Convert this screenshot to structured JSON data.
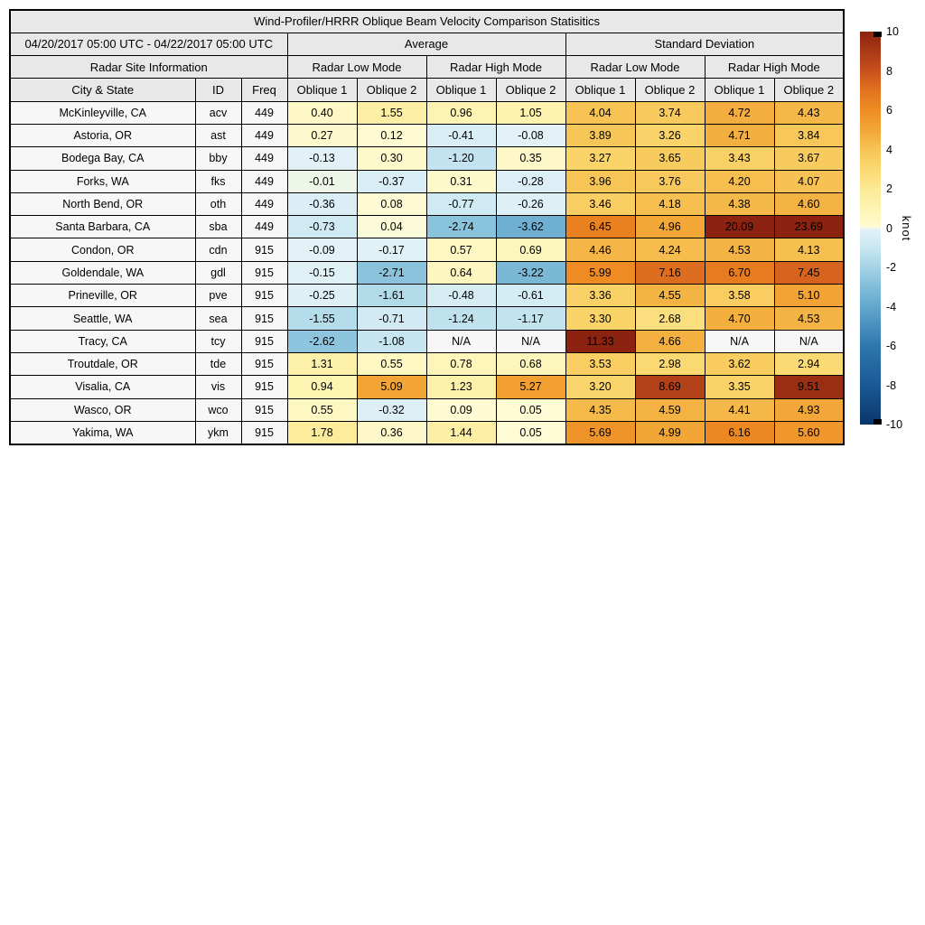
{
  "chart_data": {
    "type": "heatmap",
    "title": "Wind-Profiler/HRRR Oblique Beam Velocity Comparison Statisitics",
    "date_range": "04/20/2017 05:00 UTC - 04/22/2017 05:00 UTC",
    "group_headers": {
      "average": "Average",
      "std_dev": "Standard Deviation"
    },
    "site_info_header": "Radar Site Information",
    "mode_headers": [
      "Radar Low Mode",
      "Radar High Mode",
      "Radar Low Mode",
      "Radar High Mode"
    ],
    "col_headers": [
      "City & State",
      "ID",
      "Freq",
      "Oblique 1",
      "Oblique 2",
      "Oblique 1",
      "Oblique 2",
      "Oblique 1",
      "Oblique 2",
      "Oblique 1",
      "Oblique 2"
    ],
    "rows": [
      {
        "city": "McKinleyville, CA",
        "id": "acv",
        "freq": "449",
        "values": [
          "0.40",
          "1.55",
          "0.96",
          "1.05",
          "4.04",
          "3.74",
          "4.72",
          "4.43"
        ]
      },
      {
        "city": "Astoria, OR",
        "id": "ast",
        "freq": "449",
        "values": [
          "0.27",
          "0.12",
          "-0.41",
          "-0.08",
          "3.89",
          "3.26",
          "4.71",
          "3.84"
        ]
      },
      {
        "city": "Bodega Bay, CA",
        "id": "bby",
        "freq": "449",
        "values": [
          "-0.13",
          "0.30",
          "-1.20",
          "0.35",
          "3.27",
          "3.65",
          "3.43",
          "3.67"
        ]
      },
      {
        "city": "Forks, WA",
        "id": "fks",
        "freq": "449",
        "values": [
          "-0.01",
          "-0.37",
          "0.31",
          "-0.28",
          "3.96",
          "3.76",
          "4.20",
          "4.07"
        ]
      },
      {
        "city": "North Bend, OR",
        "id": "oth",
        "freq": "449",
        "values": [
          "-0.36",
          "0.08",
          "-0.77",
          "-0.26",
          "3.46",
          "4.18",
          "4.38",
          "4.60"
        ]
      },
      {
        "city": "Santa Barbara, CA",
        "id": "sba",
        "freq": "449",
        "values": [
          "-0.73",
          "0.04",
          "-2.74",
          "-3.62",
          "6.45",
          "4.96",
          "20.09",
          "23.69"
        ]
      },
      {
        "city": "Condon, OR",
        "id": "cdn",
        "freq": "915",
        "values": [
          "-0.09",
          "-0.17",
          "0.57",
          "0.69",
          "4.46",
          "4.24",
          "4.53",
          "4.13"
        ]
      },
      {
        "city": "Goldendale, WA",
        "id": "gdl",
        "freq": "915",
        "values": [
          "-0.15",
          "-2.71",
          "0.64",
          "-3.22",
          "5.99",
          "7.16",
          "6.70",
          "7.45"
        ]
      },
      {
        "city": "Prineville, OR",
        "id": "pve",
        "freq": "915",
        "values": [
          "-0.25",
          "-1.61",
          "-0.48",
          "-0.61",
          "3.36",
          "4.55",
          "3.58",
          "5.10"
        ]
      },
      {
        "city": "Seattle, WA",
        "id": "sea",
        "freq": "915",
        "values": [
          "-1.55",
          "-0.71",
          "-1.24",
          "-1.17",
          "3.30",
          "2.68",
          "4.70",
          "4.53"
        ]
      },
      {
        "city": "Tracy, CA",
        "id": "tcy",
        "freq": "915",
        "values": [
          "-2.62",
          "-1.08",
          "N/A",
          "N/A",
          "11.33",
          "4.66",
          "N/A",
          "N/A"
        ]
      },
      {
        "city": "Troutdale, OR",
        "id": "tde",
        "freq": "915",
        "values": [
          "1.31",
          "0.55",
          "0.78",
          "0.68",
          "3.53",
          "2.98",
          "3.62",
          "2.94"
        ]
      },
      {
        "city": "Visalia, CA",
        "id": "vis",
        "freq": "915",
        "values": [
          "0.94",
          "5.09",
          "1.23",
          "5.27",
          "3.20",
          "8.69",
          "3.35",
          "9.51"
        ]
      },
      {
        "city": "Wasco, OR",
        "id": "wco",
        "freq": "915",
        "values": [
          "0.55",
          "-0.32",
          "0.09",
          "0.05",
          "4.35",
          "4.59",
          "4.41",
          "4.93"
        ]
      },
      {
        "city": "Yakima, WA",
        "id": "ykm",
        "freq": "915",
        "values": [
          "1.78",
          "0.36",
          "1.44",
          "0.05",
          "5.69",
          "4.99",
          "6.16",
          "5.60"
        ]
      }
    ],
    "na_text": "N/A",
    "na_color": "#f7f7f7",
    "colorbar": {
      "label": "knot",
      "min": -10,
      "max": 10,
      "ticks": [
        "10",
        "8",
        "6",
        "4",
        "2",
        "0",
        "-2",
        "-4",
        "-6",
        "-8",
        "-10"
      ]
    },
    "colormap_stops": [
      [
        -10,
        "#0a3569"
      ],
      [
        -8,
        "#1a5a96"
      ],
      [
        -6,
        "#2e77ae"
      ],
      [
        -4,
        "#62a7cd"
      ],
      [
        -3,
        "#81bdd9"
      ],
      [
        -2,
        "#a4d3e5"
      ],
      [
        -1,
        "#c9e7f1"
      ],
      [
        -0.05,
        "#e3f2f7"
      ],
      [
        0.05,
        "#fefbd5"
      ],
      [
        1,
        "#fdf3b0"
      ],
      [
        2,
        "#fcea96"
      ],
      [
        3,
        "#fbd971"
      ],
      [
        4,
        "#f7c455"
      ],
      [
        5,
        "#f2a636"
      ],
      [
        6,
        "#ee8c23"
      ],
      [
        7,
        "#e2731f"
      ],
      [
        8,
        "#c8511c"
      ],
      [
        9,
        "#a93a16"
      ],
      [
        10,
        "#8c2310"
      ]
    ],
    "layout_colors": {
      "header_bg": "#e8e8e8",
      "row_label_bg": "#f7f7f7",
      "border": "#000000"
    }
  }
}
